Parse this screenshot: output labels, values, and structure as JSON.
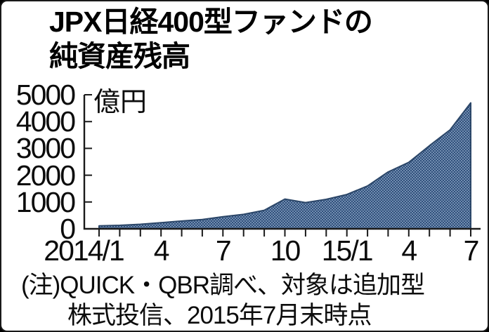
{
  "frame": {
    "background": "#ffffff",
    "border_color": "#191919"
  },
  "title": {
    "lines": [
      "JPX日経400型ファンドの",
      "純資産残高"
    ]
  },
  "note": {
    "lines": [
      "(注)QUICK・QBR調べ、対象は追加型",
      "株式投信、2015年7月末時点"
    ]
  },
  "chart_data": {
    "type": "area",
    "title": "JPX日経400型ファンドの純資産残高",
    "unit": "億円",
    "xlabel": "",
    "ylabel": "億円",
    "x": [
      "2014/1",
      "2014/2",
      "2014/3",
      "2014/4",
      "2014/5",
      "2014/6",
      "2014/7",
      "2014/8",
      "2014/9",
      "2014/10",
      "2014/11",
      "2014/12",
      "2015/1",
      "2015/2",
      "2015/3",
      "2015/4",
      "2015/5",
      "2015/6",
      "2015/7"
    ],
    "values": [
      110,
      130,
      170,
      230,
      290,
      345,
      450,
      540,
      690,
      1110,
      980,
      1100,
      1280,
      1600,
      2120,
      2480,
      3100,
      3690,
      4700
    ],
    "ylim": [
      0,
      5000
    ],
    "grid": false,
    "legend": null,
    "y_ticks": [
      {
        "value": 0,
        "label": "0"
      },
      {
        "value": 1000,
        "label": "1000"
      },
      {
        "value": 2000,
        "label": "2000"
      },
      {
        "value": 3000,
        "label": "3000"
      },
      {
        "value": 4000,
        "label": "4000"
      },
      {
        "value": 5000,
        "label": "5000"
      }
    ],
    "x_tick_labels": [
      {
        "index": 0,
        "label": "2014/1",
        "dx": -22
      },
      {
        "index": 3,
        "label": "4",
        "dx": 0
      },
      {
        "index": 6,
        "label": "7",
        "dx": 0
      },
      {
        "index": 9,
        "label": "10",
        "dx": 0
      },
      {
        "index": 12,
        "label": "15/1",
        "dx": 0
      },
      {
        "index": 15,
        "label": "4",
        "dx": 0
      },
      {
        "index": 18,
        "label": "7",
        "dx": 0
      }
    ],
    "colors": {
      "fill": "#30507c",
      "dot": "#87a0bf",
      "edge": "#2b4668",
      "axis": "#1a1a1a",
      "text": "#111111"
    }
  }
}
